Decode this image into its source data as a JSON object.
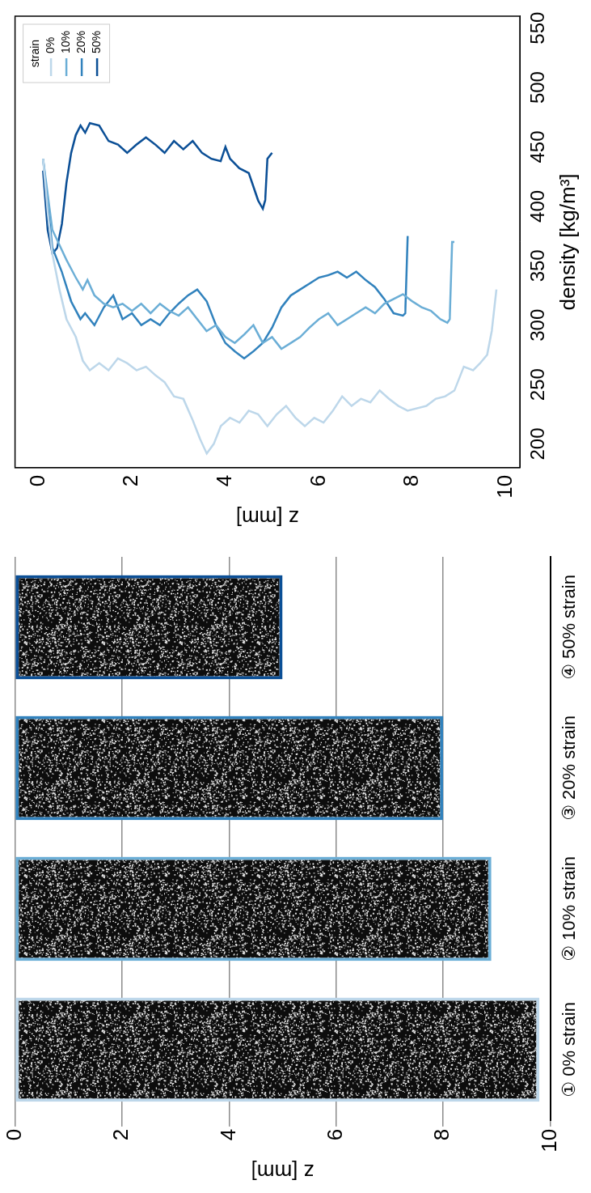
{
  "chart_data": [
    {
      "type": "bar",
      "categories": [
        "① 0% strain",
        "② 10% strain",
        "③ 20% strain",
        "④ 50% strain"
      ],
      "values": [
        9.8,
        8.9,
        8.0,
        5.0
      ],
      "colors": [
        "#bdd7ea",
        "#6baed6",
        "#3182bd",
        "#0b4f96"
      ],
      "y_label": "z [mm]",
      "ylim": [
        0,
        10
      ],
      "yticks": [
        0,
        2,
        4,
        6,
        8,
        10
      ],
      "grid": true
    },
    {
      "type": "line",
      "x_label": "density [kg/m³]",
      "y_label": "z [mm]",
      "xlim": [
        180,
        560
      ],
      "xticks": [
        200,
        250,
        300,
        350,
        400,
        450,
        500,
        550
      ],
      "ylim": [
        -0.5,
        10.3
      ],
      "yticks": [
        0,
        2,
        4,
        6,
        8,
        10
      ],
      "grid": false,
      "legend": "upper right",
      "legend_title": "strain",
      "series": [
        {
          "name": "0%",
          "color": "#bdd7ea",
          "x": [
            440,
            395,
            360,
            330,
            305,
            290,
            270,
            262,
            268,
            262,
            272,
            268,
            262,
            265,
            258,
            252,
            240,
            238,
            220,
            205,
            192,
            200,
            215,
            222,
            218,
            228,
            225,
            215,
            225,
            232,
            222,
            215,
            222,
            218,
            228,
            240,
            232,
            238,
            235,
            245,
            238,
            232,
            228,
            230,
            232,
            238,
            240,
            245,
            255,
            265,
            262,
            268,
            275,
            295,
            330
          ],
          "y": [
            0.1,
            0.2,
            0.3,
            0.45,
            0.6,
            0.8,
            0.95,
            1.1,
            1.3,
            1.5,
            1.7,
            1.9,
            2.1,
            2.3,
            2.5,
            2.7,
            2.9,
            3.1,
            3.3,
            3.45,
            3.6,
            3.75,
            3.9,
            4.1,
            4.3,
            4.5,
            4.7,
            4.9,
            5.1,
            5.3,
            5.5,
            5.7,
            5.9,
            6.1,
            6.3,
            6.5,
            6.7,
            6.9,
            7.1,
            7.3,
            7.5,
            7.7,
            7.9,
            8.1,
            8.3,
            8.5,
            8.7,
            8.9,
            9.0,
            9.1,
            9.3,
            9.45,
            9.6,
            9.7,
            9.8
          ]
        },
        {
          "name": "10%",
          "color": "#6baed6",
          "x": [
            440,
            380,
            355,
            340,
            330,
            338,
            325,
            318,
            315,
            318,
            312,
            318,
            310,
            318,
            312,
            308,
            315,
            305,
            295,
            300,
            290,
            285,
            292,
            300,
            285,
            290,
            280,
            285,
            290,
            298,
            305,
            310,
            300,
            305,
            310,
            315,
            310,
            318,
            322,
            326,
            320,
            315,
            312,
            305,
            302,
            305,
            370,
            370
          ],
          "y": [
            0.1,
            0.3,
            0.6,
            0.8,
            0.95,
            1.05,
            1.2,
            1.4,
            1.6,
            1.8,
            2.0,
            2.2,
            2.4,
            2.6,
            2.8,
            3.0,
            3.2,
            3.4,
            3.6,
            3.8,
            4.0,
            4.2,
            4.4,
            4.6,
            4.8,
            5.0,
            5.2,
            5.4,
            5.6,
            5.8,
            6.0,
            6.2,
            6.4,
            6.6,
            6.8,
            7.0,
            7.2,
            7.4,
            7.6,
            7.8,
            8.0,
            8.2,
            8.4,
            8.6,
            8.75,
            8.8,
            8.85,
            8.9
          ]
        },
        {
          "name": "20%",
          "color": "#3182bd",
          "x": [
            440,
            365,
            345,
            320,
            305,
            310,
            300,
            315,
            325,
            305,
            310,
            300,
            305,
            300,
            310,
            318,
            325,
            330,
            320,
            300,
            285,
            278,
            272,
            278,
            285,
            298,
            315,
            325,
            330,
            335,
            340,
            342,
            345,
            340,
            345,
            338,
            332,
            322,
            310,
            308,
            310,
            375
          ],
          "y": [
            0.1,
            0.3,
            0.5,
            0.7,
            0.9,
            1.0,
            1.2,
            1.4,
            1.6,
            1.8,
            2.0,
            2.2,
            2.4,
            2.6,
            2.8,
            3.0,
            3.2,
            3.4,
            3.6,
            3.8,
            4.0,
            4.2,
            4.4,
            4.6,
            4.8,
            5.0,
            5.2,
            5.4,
            5.6,
            5.8,
            6.0,
            6.2,
            6.4,
            6.6,
            6.8,
            7.0,
            7.2,
            7.4,
            7.6,
            7.8,
            7.85,
            7.9
          ]
        },
        {
          "name": "50%",
          "color": "#0b4f96",
          "x": [
            430,
            380,
            360,
            365,
            385,
            420,
            445,
            460,
            468,
            462,
            470,
            468,
            455,
            452,
            445,
            452,
            458,
            452,
            445,
            455,
            448,
            455,
            445,
            440,
            438,
            450,
            440,
            432,
            428,
            405,
            398,
            405,
            440,
            445
          ],
          "y": [
            0.1,
            0.2,
            0.3,
            0.4,
            0.5,
            0.6,
            0.7,
            0.8,
            0.9,
            1.0,
            1.1,
            1.3,
            1.5,
            1.7,
            1.9,
            2.1,
            2.3,
            2.5,
            2.7,
            2.9,
            3.1,
            3.3,
            3.5,
            3.7,
            3.9,
            4.0,
            4.1,
            4.3,
            4.5,
            4.7,
            4.8,
            4.85,
            4.9,
            5.0
          ]
        }
      ]
    }
  ]
}
